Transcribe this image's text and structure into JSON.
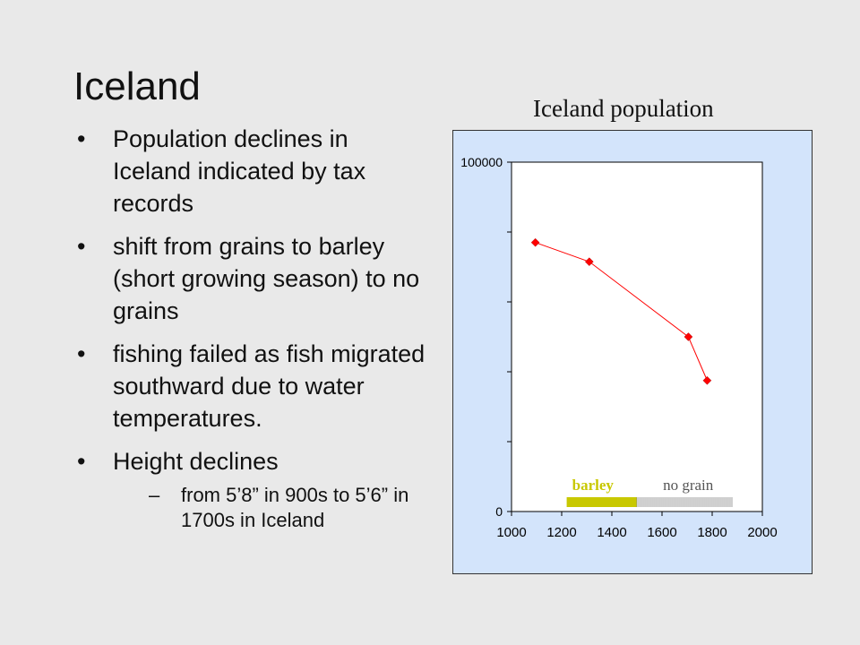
{
  "slide": {
    "title": "Iceland",
    "bullets": [
      "Population declines in Iceland indicated by tax records",
      "shift from grains to barley (short growing season) to no grains",
      "fishing failed as fish migrated southward due to water temperatures.",
      "Height declines"
    ],
    "sub_bullets": [
      "from 5’8” in 900s to 5’6” in 1700s in Iceland"
    ],
    "bullet_symbol": "•",
    "sub_bullet_symbol": "–"
  },
  "chart_data": {
    "type": "line",
    "title": "Iceland population",
    "xlabel": "",
    "ylabel": "",
    "xlim": [
      1000,
      2000
    ],
    "ylim": [
      0,
      100000
    ],
    "x_ticks": [
      "1000",
      "1200",
      "1400",
      "1600",
      "1800",
      "2000"
    ],
    "y_ticks": [
      "0",
      "100000"
    ],
    "grid": false,
    "series": [
      {
        "color": "#ff0000",
        "marker": "diamond",
        "x": [
          1095,
          1310,
          1705,
          1780
        ],
        "y": [
          77000,
          71500,
          50000,
          37500
        ]
      }
    ],
    "annotations": [
      {
        "label": "barley",
        "x_range": [
          1220,
          1500
        ],
        "color": "#c8c800"
      },
      {
        "label": "no grain",
        "x_range": [
          1500,
          1880
        ],
        "color": "#888888"
      }
    ]
  }
}
